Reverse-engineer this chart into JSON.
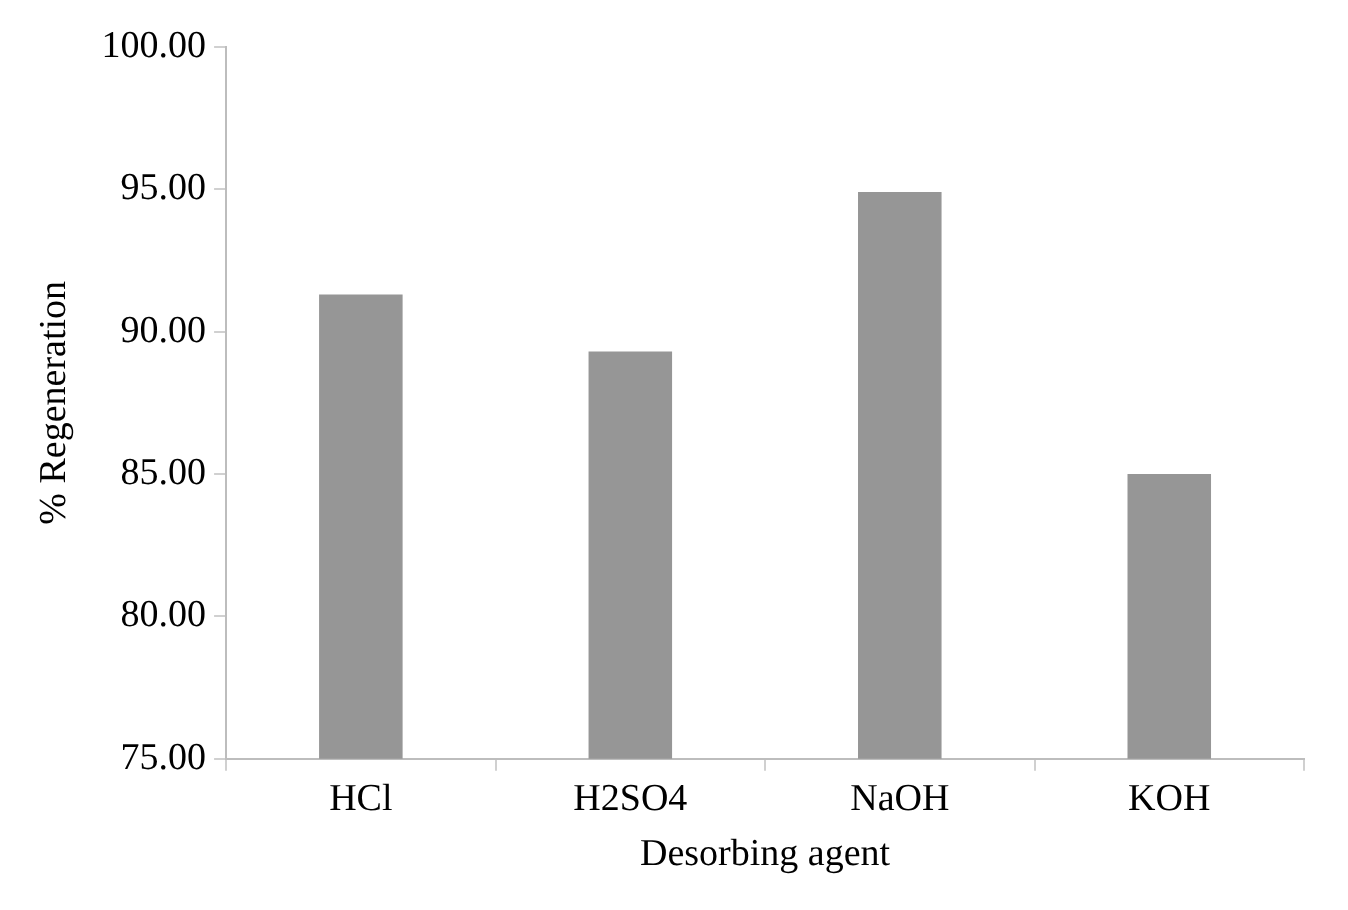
{
  "chart_data": {
    "type": "bar",
    "xlabel": "Desorbing agent",
    "ylabel": "% Regeneration",
    "categories": [
      "HCl",
      "H2SO4",
      "NaOH",
      "KOH"
    ],
    "values": [
      91.3,
      89.3,
      94.9,
      85.0
    ],
    "color": "#969696",
    "ylim": [
      75,
      100
    ],
    "yticks": [
      {
        "value": 75,
        "label": "75.00"
      },
      {
        "value": 80,
        "label": "80.00"
      },
      {
        "value": 85,
        "label": "85.00"
      },
      {
        "value": 90,
        "label": "90.00"
      },
      {
        "value": 95,
        "label": "95.00"
      },
      {
        "value": 100,
        "label": "100.00"
      }
    ],
    "grid": false,
    "legend": false
  }
}
